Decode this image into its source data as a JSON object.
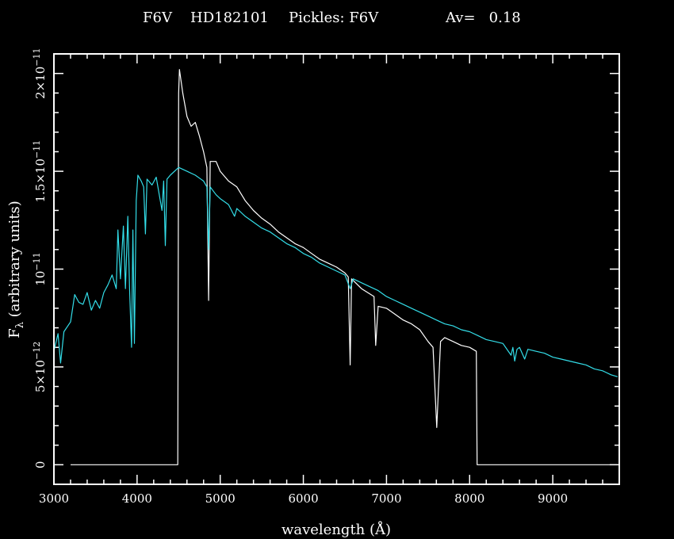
{
  "chart_data": {
    "type": "line",
    "title": {
      "spectral_type": "F6V",
      "star": "HD182101",
      "pickles": "Pickles: F6V",
      "av": "Av=   0.18"
    },
    "xlabel": "wavelength (Å)",
    "ylabel": "F_λ (arbitrary units)",
    "ylabel_parts": {
      "main": "F",
      "sub": "λ",
      "rest": " (arbitrary units)"
    },
    "xlim": [
      3000,
      9800
    ],
    "ylim": [
      -1e-12,
      2.1e-11
    ],
    "x_ticks": [
      {
        "v": 3000,
        "label": "3000"
      },
      {
        "v": 4000,
        "label": "4000"
      },
      {
        "v": 5000,
        "label": "5000"
      },
      {
        "v": 6000,
        "label": "6000"
      },
      {
        "v": 7000,
        "label": "7000"
      },
      {
        "v": 8000,
        "label": "8000"
      },
      {
        "v": 9000,
        "label": "9000"
      }
    ],
    "y_ticks": [
      {
        "v": 0,
        "base": "0",
        "exp": ""
      },
      {
        "v": 5e-12,
        "base": "5×10",
        "exp": "−12"
      },
      {
        "v": 1e-11,
        "base": "10",
        "exp": "−11"
      },
      {
        "v": 1.5e-11,
        "base": "1.5×10",
        "exp": "−11"
      },
      {
        "v": 2e-11,
        "base": "2×10",
        "exp": "−11"
      }
    ],
    "series": [
      {
        "color": "#ffffff",
        "points": [
          [
            3200,
            0
          ],
          [
            4490,
            0
          ],
          [
            4500,
            1.9e-11
          ],
          [
            4510,
            2.02e-11
          ],
          [
            4550,
            1.9e-11
          ],
          [
            4600,
            1.78e-11
          ],
          [
            4650,
            1.73e-11
          ],
          [
            4700,
            1.75e-11
          ],
          [
            4750,
            1.68e-11
          ],
          [
            4800,
            1.6e-11
          ],
          [
            4840,
            1.52e-11
          ],
          [
            4861,
            8.4e-12
          ],
          [
            4880,
            1.55e-11
          ],
          [
            4950,
            1.55e-11
          ],
          [
            5000,
            1.5e-11
          ],
          [
            5100,
            1.45e-11
          ],
          [
            5200,
            1.42e-11
          ],
          [
            5300,
            1.35e-11
          ],
          [
            5400,
            1.3e-11
          ],
          [
            5500,
            1.26e-11
          ],
          [
            5600,
            1.23e-11
          ],
          [
            5700,
            1.19e-11
          ],
          [
            5800,
            1.16e-11
          ],
          [
            5900,
            1.13e-11
          ],
          [
            6000,
            1.11e-11
          ],
          [
            6100,
            1.08e-11
          ],
          [
            6200,
            1.05e-11
          ],
          [
            6300,
            1.03e-11
          ],
          [
            6400,
            1.01e-11
          ],
          [
            6500,
            9.8e-12
          ],
          [
            6540,
            9.6e-12
          ],
          [
            6563,
            5.1e-12
          ],
          [
            6580,
            9.5e-12
          ],
          [
            6700,
            9e-12
          ],
          [
            6850,
            8.6e-12
          ],
          [
            6870,
            6.1e-12
          ],
          [
            6900,
            8.1e-12
          ],
          [
            7000,
            8e-12
          ],
          [
            7100,
            7.7e-12
          ],
          [
            7200,
            7.4e-12
          ],
          [
            7300,
            7.2e-12
          ],
          [
            7400,
            6.9e-12
          ],
          [
            7500,
            6.3e-12
          ],
          [
            7560,
            6e-12
          ],
          [
            7605,
            1.9e-12
          ],
          [
            7650,
            6.3e-12
          ],
          [
            7700,
            6.5e-12
          ],
          [
            7800,
            6.3e-12
          ],
          [
            7900,
            6.1e-12
          ],
          [
            8000,
            6e-12
          ],
          [
            8080,
            5.8e-12
          ],
          [
            8090,
            0
          ],
          [
            9780,
            0
          ]
        ]
      },
      {
        "color": "#33dde8",
        "points": [
          [
            3000,
            5.8e-12
          ],
          [
            3050,
            6.7e-12
          ],
          [
            3080,
            5.2e-12
          ],
          [
            3120,
            6.8e-12
          ],
          [
            3200,
            7.3e-12
          ],
          [
            3250,
            8.7e-12
          ],
          [
            3300,
            8.3e-12
          ],
          [
            3350,
            8.2e-12
          ],
          [
            3400,
            8.8e-12
          ],
          [
            3450,
            7.9e-12
          ],
          [
            3500,
            8.4e-12
          ],
          [
            3550,
            8e-12
          ],
          [
            3600,
            8.8e-12
          ],
          [
            3650,
            9.2e-12
          ],
          [
            3700,
            9.7e-12
          ],
          [
            3750,
            9e-12
          ],
          [
            3770,
            1.2e-11
          ],
          [
            3800,
            9.5e-12
          ],
          [
            3835,
            1.22e-11
          ],
          [
            3860,
            9e-12
          ],
          [
            3889,
            1.27e-11
          ],
          [
            3910,
            9e-12
          ],
          [
            3934,
            6e-12
          ],
          [
            3950,
            1.2e-11
          ],
          [
            3968,
            6.2e-12
          ],
          [
            3990,
            1.35e-11
          ],
          [
            4010,
            1.48e-11
          ],
          [
            4050,
            1.45e-11
          ],
          [
            4080,
            1.42e-11
          ],
          [
            4101,
            1.18e-11
          ],
          [
            4120,
            1.46e-11
          ],
          [
            4180,
            1.43e-11
          ],
          [
            4230,
            1.47e-11
          ],
          [
            4300,
            1.3e-11
          ],
          [
            4320,
            1.45e-11
          ],
          [
            4340,
            1.12e-11
          ],
          [
            4360,
            1.46e-11
          ],
          [
            4400,
            1.48e-11
          ],
          [
            4500,
            1.52e-11
          ],
          [
            4600,
            1.5e-11
          ],
          [
            4700,
            1.48e-11
          ],
          [
            4800,
            1.45e-11
          ],
          [
            4840,
            1.42e-11
          ],
          [
            4861,
            1.1e-11
          ],
          [
            4880,
            1.42e-11
          ],
          [
            4950,
            1.38e-11
          ],
          [
            5000,
            1.36e-11
          ],
          [
            5100,
            1.33e-11
          ],
          [
            5173,
            1.27e-11
          ],
          [
            5200,
            1.31e-11
          ],
          [
            5300,
            1.27e-11
          ],
          [
            5400,
            1.24e-11
          ],
          [
            5500,
            1.21e-11
          ],
          [
            5600,
            1.19e-11
          ],
          [
            5700,
            1.16e-11
          ],
          [
            5800,
            1.13e-11
          ],
          [
            5900,
            1.11e-11
          ],
          [
            6000,
            1.08e-11
          ],
          [
            6100,
            1.06e-11
          ],
          [
            6200,
            1.03e-11
          ],
          [
            6300,
            1.01e-11
          ],
          [
            6400,
            9.9e-12
          ],
          [
            6500,
            9.7e-12
          ],
          [
            6563,
            9e-12
          ],
          [
            6600,
            9.5e-12
          ],
          [
            6700,
            9.3e-12
          ],
          [
            6800,
            9.1e-12
          ],
          [
            6900,
            8.9e-12
          ],
          [
            7000,
            8.6e-12
          ],
          [
            7100,
            8.4e-12
          ],
          [
            7200,
            8.2e-12
          ],
          [
            7300,
            8e-12
          ],
          [
            7400,
            7.8e-12
          ],
          [
            7500,
            7.6e-12
          ],
          [
            7600,
            7.4e-12
          ],
          [
            7700,
            7.2e-12
          ],
          [
            7800,
            7.1e-12
          ],
          [
            7900,
            6.9e-12
          ],
          [
            8000,
            6.8e-12
          ],
          [
            8100,
            6.6e-12
          ],
          [
            8200,
            6.4e-12
          ],
          [
            8300,
            6.3e-12
          ],
          [
            8400,
            6.2e-12
          ],
          [
            8498,
            5.6e-12
          ],
          [
            8520,
            6e-12
          ],
          [
            8542,
            5.3e-12
          ],
          [
            8570,
            5.9e-12
          ],
          [
            8600,
            6e-12
          ],
          [
            8662,
            5.4e-12
          ],
          [
            8700,
            5.9e-12
          ],
          [
            8800,
            5.8e-12
          ],
          [
            8900,
            5.7e-12
          ],
          [
            9000,
            5.5e-12
          ],
          [
            9100,
            5.4e-12
          ],
          [
            9200,
            5.3e-12
          ],
          [
            9300,
            5.2e-12
          ],
          [
            9400,
            5.1e-12
          ],
          [
            9500,
            4.9e-12
          ],
          [
            9600,
            4.8e-12
          ],
          [
            9700,
            4.6e-12
          ],
          [
            9780,
            4.5e-12
          ]
        ]
      }
    ]
  }
}
